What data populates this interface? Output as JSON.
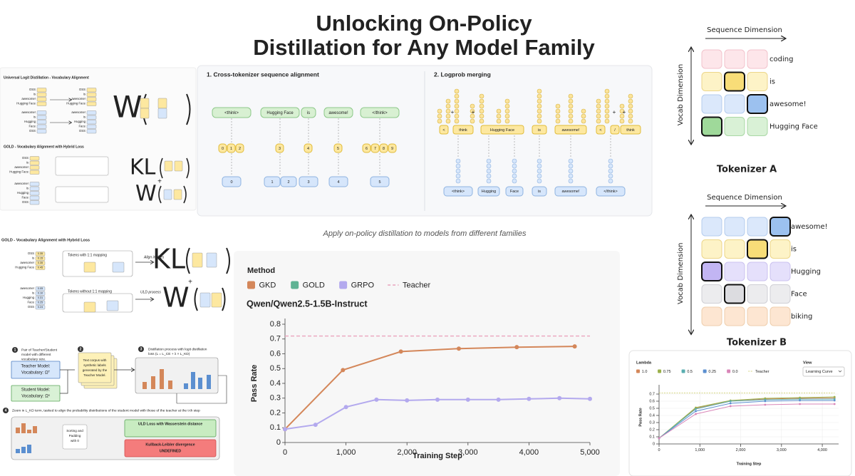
{
  "title_lines": [
    "Unlocking On-Policy",
    "Distillation for Any Model Family"
  ],
  "caption": "Apply on-policy distillation to models from different families",
  "alignment": {
    "sections": [
      "1. Cross-tokenizer sequence alignment",
      "2. Logprob merging"
    ],
    "teacher_tokens": [
      "<think>",
      "Hugging Face",
      "is",
      "awesome!",
      "</think>"
    ],
    "index_groups": [
      [
        "0",
        "1",
        "2"
      ],
      [
        "3"
      ],
      [
        "4"
      ],
      [
        "5"
      ],
      [
        "6",
        "7",
        "8",
        "9"
      ]
    ],
    "student_index_groups": [
      [
        "0"
      ],
      [
        "1",
        "2"
      ],
      [
        "3"
      ],
      [
        "4"
      ],
      [
        "5"
      ]
    ],
    "merge_symbol": "+",
    "merged_token_groups": [
      [
        "<",
        "think"
      ],
      [
        "Hugging Face"
      ],
      [
        "is"
      ],
      [
        "awesome!"
      ],
      [
        "<",
        "/",
        "think"
      ]
    ],
    "student_tokens": [
      "<think>",
      "Hugging",
      "Face",
      "is",
      "awesome!",
      "</think>"
    ]
  },
  "tokenizer_a": {
    "title": "Tokenizer A",
    "x_label": "Sequence Dimension",
    "y_label": "Vocab Dimension",
    "rows": [
      "coding",
      "is",
      "awesome!",
      "Hugging Face"
    ]
  },
  "tokenizer_b": {
    "title": "Tokenizer B",
    "x_label": "Sequence Dimension",
    "y_label": "Vocab Dimension",
    "rows": [
      "awesome!",
      "is",
      "Hugging",
      "Face",
      "biking"
    ]
  },
  "uld_diagram": {
    "heading": "Universal Logit Distillation - Vocabulary Alignment",
    "teacher_tokens": [
      "OSS",
      "is",
      "awesome!",
      "Hugging Face"
    ],
    "student_tokens": [
      "awesome!",
      "is",
      "Hugging",
      "Face",
      "OSS"
    ],
    "formula": "W"
  },
  "gold_thumbnail": {
    "heading": "GOLD - Vocabulary Alignment with Hybrid Loss",
    "formulas": [
      "KL",
      "W"
    ],
    "plus": "+"
  },
  "gold_diagram": {
    "heading": "GOLD - Vocabulary Alignment with Hybrid Loss",
    "teacher_tokens": [
      "OSS",
      "is",
      "awesome!",
      "Hugging Face"
    ],
    "teacher_values": [
      "0.35",
      "0.15",
      "0.35",
      "0.45"
    ],
    "student_tokens": [
      "awesome!",
      "is",
      "Hugging",
      "Face",
      "OSS"
    ],
    "student_values": [
      "0.05",
      "0.10",
      "0.31",
      "0.25",
      "0.24"
    ],
    "notes": [
      "Tokens with 1:1 mapping",
      "Align indices",
      "Tokens without 1:1 mapping",
      "ULD process"
    ],
    "formulas": [
      "KL",
      "W"
    ],
    "plus": "+"
  },
  "pipeline": {
    "steps": [
      {
        "number": "1",
        "text": [
          "Pair of Teacher/Student",
          "model with different",
          "vocabulary size."
        ]
      },
      {
        "number": "2",
        "text": [
          "Text corpus with",
          "synthetic labels",
          "generated by the",
          "Teacher Model."
        ]
      },
      {
        "number": "3",
        "text": [
          "Distillation process with logit distillation",
          "loss (L = L_CE + λ × L_KD)"
        ]
      },
      {
        "number": "4",
        "text": [
          "Zoom in L_KD term, tasked to align the probability distributions of the student model with those of the teacher at the t-th step"
        ]
      }
    ],
    "teacher": [
      "Teacher Model:",
      "Vocabulary: Ωᵀ"
    ],
    "student": [
      "Student Model:",
      "Vocabulary: Ωˢ"
    ],
    "padding": [
      "Sorting and",
      "Padding",
      "with 0"
    ],
    "uld_loss": "ULD Loss with Wasserstein distance",
    "kl": [
      "Kullback-Leibler divergence",
      "UNDEFINED"
    ]
  },
  "chart_data": [
    {
      "type": "line",
      "legend_title": "Method",
      "title": "Qwen/Qwen2.5-1.5B-Instruct",
      "xlabel": "Training Step",
      "ylabel": "Pass Rate",
      "xlim": [
        0,
        5000
      ],
      "ylim": [
        0,
        0.8
      ],
      "xticks": [
        0,
        {
          "value": 1000,
          "label": "1,000"
        },
        {
          "value": 2000,
          "label": "2,000"
        },
        {
          "value": 3000,
          "label": "3,000"
        },
        {
          "value": 4000,
          "label": "4,000"
        },
        {
          "value": 5000,
          "label": "5,000"
        }
      ],
      "yticks": [
        0,
        0.1,
        0.2,
        0.3,
        0.4,
        0.5,
        0.6,
        0.7,
        0.8
      ],
      "grid": false,
      "series": [
        {
          "name": "GKD",
          "color": "#d4875a",
          "x": [
            0,
            950,
            1900,
            2850,
            3800,
            4750
          ],
          "values": [
            0.09,
            0.49,
            0.615,
            0.635,
            0.645,
            0.65
          ]
        },
        {
          "name": "GOLD",
          "color": "#5fb394",
          "x": [],
          "values": []
        },
        {
          "name": "GRPO",
          "color": "#b3a9ee",
          "x": [
            0,
            500,
            1000,
            1500,
            2000,
            2500,
            3000,
            3500,
            4000,
            4500,
            5000
          ],
          "values": [
            0.09,
            0.12,
            0.24,
            0.29,
            0.285,
            0.29,
            0.29,
            0.29,
            0.295,
            0.3,
            0.295
          ]
        },
        {
          "name": "Teacher",
          "color": "#e9a3bd",
          "dashed": true,
          "x": [
            0,
            5000
          ],
          "values": [
            0.72,
            0.72
          ]
        }
      ]
    },
    {
      "type": "line",
      "legend_title": "Lambda",
      "control_label": "View",
      "control_value": "Learning Curve",
      "xlabel": "Training Step",
      "ylabel": "Pass Rate",
      "xlim": [
        0,
        4400
      ],
      "ylim": [
        0,
        0.75
      ],
      "xticks": [
        0,
        {
          "value": 1000,
          "label": "1,000"
        },
        {
          "value": 2000,
          "label": "2,000"
        },
        {
          "value": 3000,
          "label": "3,000"
        },
        {
          "value": 4000,
          "label": "4,000"
        }
      ],
      "yticks": [
        0,
        0.1,
        0.2,
        0.3,
        0.4,
        0.5,
        0.6,
        0.7
      ],
      "grid": true,
      "series": [
        {
          "name": "1.0",
          "color": "#d4875a",
          "x": [
            0,
            900,
            1750,
            2600,
            3450,
            4300
          ],
          "values": [
            0.08,
            0.5,
            0.6,
            0.63,
            0.64,
            0.645
          ]
        },
        {
          "name": "0.75",
          "color": "#9ab04a",
          "x": [
            0,
            900,
            1750,
            2600,
            3450,
            4300
          ],
          "values": [
            0.08,
            0.51,
            0.61,
            0.64,
            0.65,
            0.66
          ]
        },
        {
          "name": "0.5",
          "color": "#5aaeb0",
          "x": [
            0,
            900,
            1750,
            2600,
            3450,
            4300
          ],
          "values": [
            0.08,
            0.49,
            0.6,
            0.62,
            0.63,
            0.63
          ]
        },
        {
          "name": "0.25",
          "color": "#5b8fd0",
          "x": [
            0,
            900,
            1750,
            2600,
            3450,
            4300
          ],
          "values": [
            0.08,
            0.46,
            0.57,
            0.6,
            0.61,
            0.61
          ]
        },
        {
          "name": "0.0",
          "color": "#d986b8",
          "x": [
            0,
            900,
            1750,
            2600,
            3450,
            4300
          ],
          "values": [
            0.08,
            0.42,
            0.53,
            0.55,
            0.56,
            0.56
          ]
        },
        {
          "name": "Teacher",
          "color": "#c7c95a",
          "dashed": true,
          "x": [
            0,
            4300
          ],
          "values": [
            0.715,
            0.715
          ]
        }
      ]
    }
  ]
}
